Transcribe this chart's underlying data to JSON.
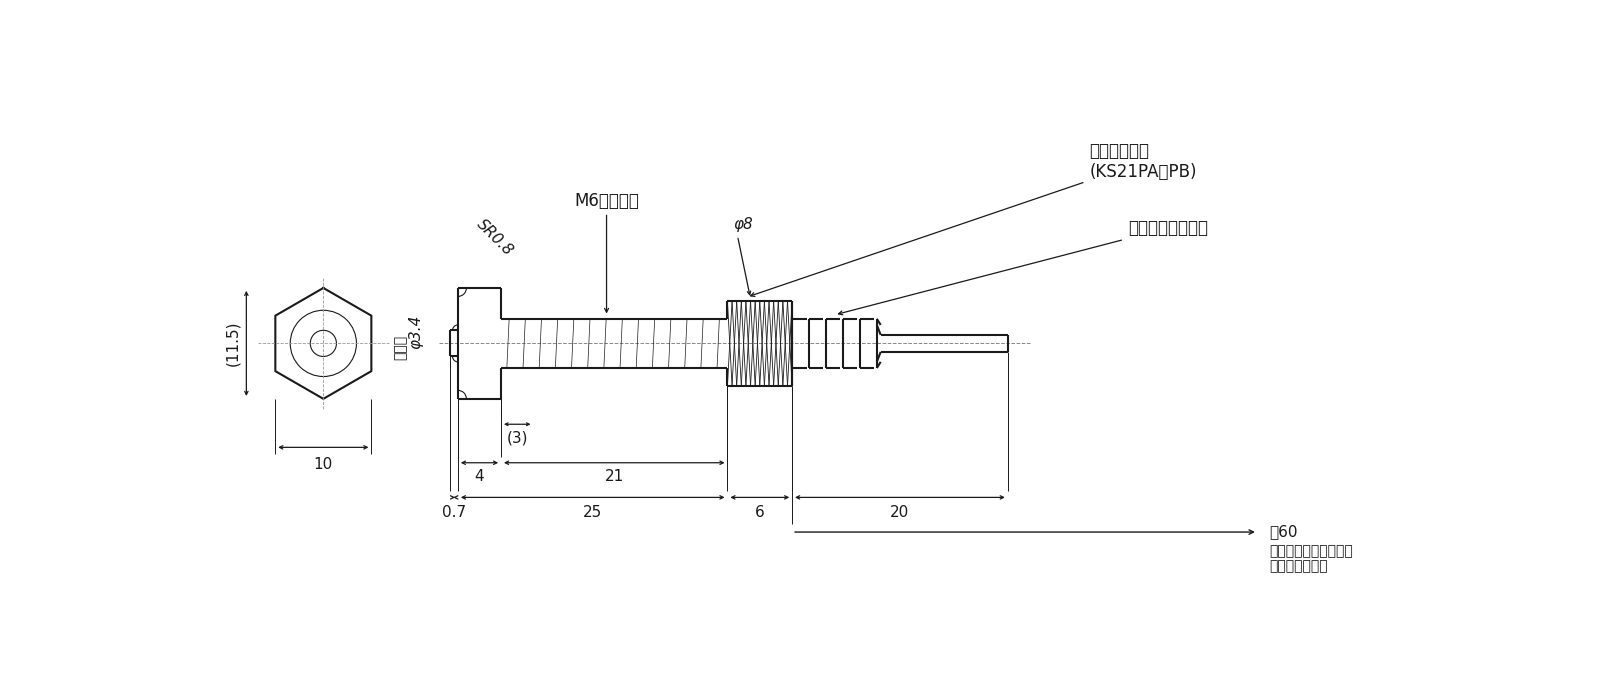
{
  "bg_color": "#ffffff",
  "line_color": "#1a1a1a",
  "fig_width": 16.0,
  "fig_height": 6.8,
  "labels": {
    "cartridge": "カートリッジ",
    "cartridge_model": "(KS21PA／PB)",
    "cord_protector": "コードプロテクタ",
    "flat_part": "平面部",
    "sr08": "SR0.8",
    "phi34": "φ3.4",
    "phi8": "φ8",
    "m6": "M6（並目）",
    "dim_3": "(3)",
    "dim_4": "4",
    "dim_21": "21",
    "dim_07": "0.7",
    "dim_25": "25",
    "dim_6": "6",
    "dim_20": "20",
    "yaku60": "顄60",
    "dim_115": "(11.5)",
    "dim_10": "10",
    "space_note1": "カートリッジ取外しに",
    "space_note2": "要するスペース"
  }
}
